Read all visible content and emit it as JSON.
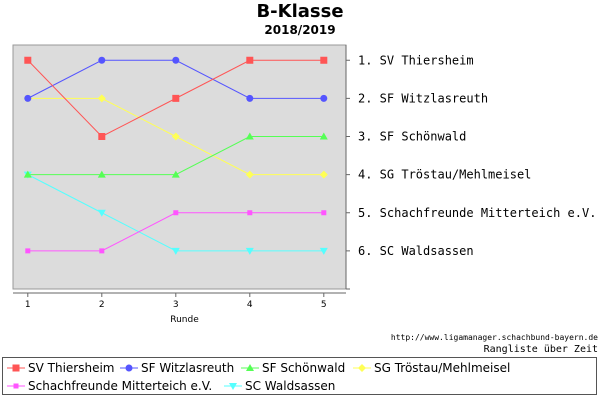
{
  "header": {
    "title": "B-Klasse",
    "subtitle": "2018/2019"
  },
  "footer": {
    "source": "http://www.ligamanager.schachbund-bayern.de",
    "caption": "Rangliste über Zeit"
  },
  "chart_data": {
    "type": "line",
    "title": "B-Klasse",
    "subtitle": "2018/2019",
    "xlabel": "Runde",
    "ylabel": "",
    "x": [
      1,
      2,
      3,
      4,
      5
    ],
    "xlim": [
      0.8,
      5.3
    ],
    "ylim": [
      7.0,
      0.6
    ],
    "grid": false,
    "legend_position": "bottom",
    "rank_labels": [
      "1.  SV Thiersheim",
      "2.  SF Witzlasreuth",
      "3.  SF Schönwald",
      "4.  SG Tröstau/Mehlmeisel",
      "5.  Schachfreunde Mitterteich e.V.",
      "6.  SC Waldsassen"
    ],
    "series": [
      {
        "name": "SV Thiersheim",
        "color": "#ff5555",
        "marker": "square",
        "values": [
          1,
          3,
          2,
          1,
          1
        ]
      },
      {
        "name": "SF Witzlasreuth",
        "color": "#5555ff",
        "marker": "circle",
        "values": [
          2,
          1,
          1,
          2,
          2
        ]
      },
      {
        "name": "SF Schönwald",
        "color": "#55ff55",
        "marker": "triangle-up",
        "values": [
          4,
          4,
          4,
          3,
          3
        ]
      },
      {
        "name": "SG Tröstau/Mehlmeisel",
        "color": "#ffff55",
        "marker": "diamond",
        "values": [
          2,
          2,
          3,
          4,
          4
        ]
      },
      {
        "name": "Schachfreunde Mitterteich e.V.",
        "color": "#ff55ff",
        "marker": "square-small",
        "values": [
          6,
          6,
          5,
          5,
          5
        ]
      },
      {
        "name": "SC Waldsassen",
        "color": "#55ffff",
        "marker": "triangle-down",
        "values": [
          4,
          5,
          6,
          6,
          6
        ]
      }
    ]
  }
}
